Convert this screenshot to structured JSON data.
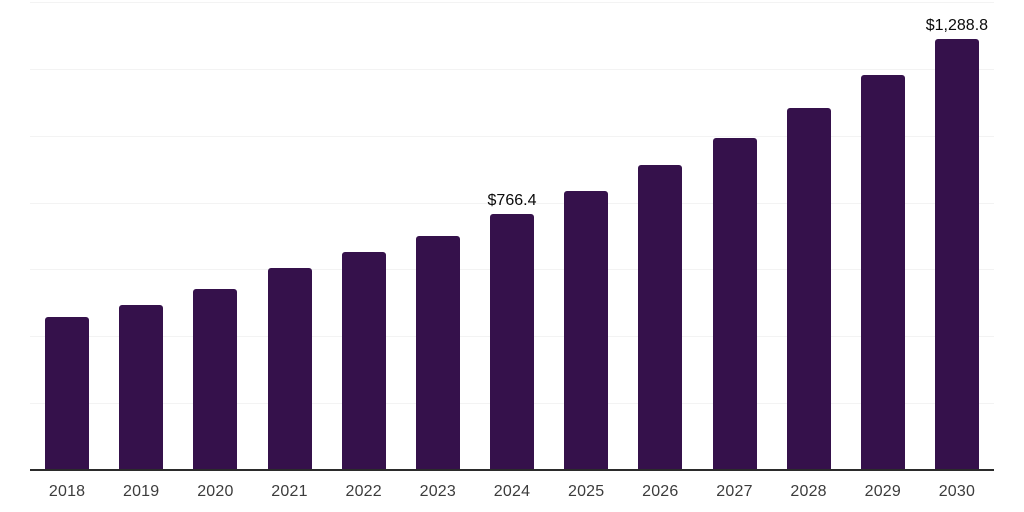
{
  "chart_data": {
    "type": "bar",
    "title": "",
    "xlabel": "",
    "ylabel": "",
    "categories": [
      "2018",
      "2019",
      "2020",
      "2021",
      "2022",
      "2023",
      "2024",
      "2025",
      "2026",
      "2027",
      "2028",
      "2029",
      "2030"
    ],
    "values": [
      458,
      494,
      542,
      604,
      652,
      700,
      766.4,
      836,
      912,
      994,
      1084,
      1182,
      1288.8
    ],
    "annotations": [
      {
        "category": "2024",
        "text": "$766.4"
      },
      {
        "category": "2030",
        "text": "$1,288.8"
      }
    ],
    "ylim": [
      0,
      1400
    ],
    "grid_step": 200,
    "grid": "horizontal-only",
    "legend": "none",
    "bar_color": "#35114B",
    "axis_color": "#2B2B2B",
    "gridline_color": "#F3F3F3",
    "tick_label_color": "#3C3C3C",
    "value_label_color": "#0A0A0A"
  }
}
